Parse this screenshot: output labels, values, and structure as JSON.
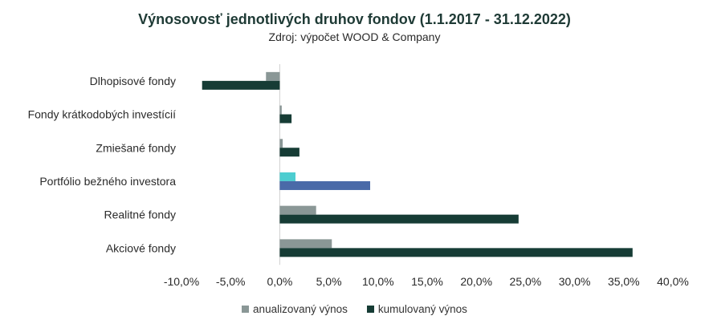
{
  "chart_data": {
    "type": "bar",
    "orientation": "horizontal",
    "title": "Výnosovosť jednotlivých druhov fondov (1.1.2017 - 31.12.2022)",
    "subtitle": "Zdroj: výpočet WOOD & Company",
    "categories": [
      "Dlhopisové fondy",
      "Fondy krátkodobých investícií",
      "Zmiešané fondy",
      "Portfólio bežného investora",
      "Realitné fondy",
      "Akciové fondy"
    ],
    "series": [
      {
        "name": "anualizovaný výnos",
        "color": "#8a9796",
        "values": [
          -1.4,
          0.2,
          0.3,
          1.6,
          3.7,
          5.3
        ]
      },
      {
        "name": "kumulovaný výnos",
        "color": "#163c35",
        "values": [
          -7.9,
          1.2,
          2.0,
          9.2,
          24.3,
          35.9
        ]
      }
    ],
    "highlight": {
      "category": "Portfólio bežného investora",
      "colors": [
        "#4dcdd0",
        "#4a6aa8"
      ]
    },
    "xlim": [
      -10,
      40
    ],
    "xticks": [
      "-10,0%",
      "-5,0%",
      "0,0%",
      "5,0%",
      "10,0%",
      "15,0%",
      "20,0%",
      "25,0%",
      "30,0%",
      "35,0%",
      "40,0%"
    ],
    "xtick_values": [
      -10,
      -5,
      0,
      5,
      10,
      15,
      20,
      25,
      30,
      35,
      40
    ],
    "legend_position": "bottom",
    "grid": false
  }
}
